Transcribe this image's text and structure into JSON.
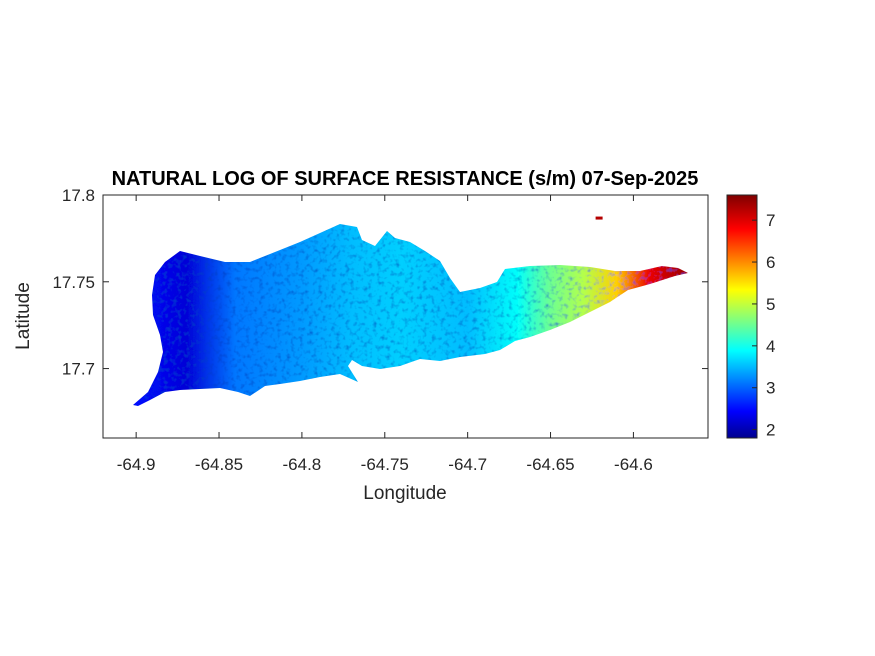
{
  "chart_data": {
    "type": "heatmap",
    "title": "NATURAL LOG OF SURFACE RESISTANCE (s/m) 07-Sep-2025",
    "xlabel": "Longitude",
    "ylabel": "Latitude",
    "xlim": [
      -64.92,
      -64.555
    ],
    "ylim": [
      17.66,
      17.8
    ],
    "xticks": [
      -64.9,
      -64.85,
      -64.8,
      -64.75,
      -64.7,
      -64.65,
      -64.6
    ],
    "xtick_labels": [
      "-64.9",
      "-64.85",
      "-64.8",
      "-64.75",
      "-64.7",
      "-64.65",
      "-64.6"
    ],
    "yticks": [
      17.7,
      17.75,
      17.8
    ],
    "ytick_labels": [
      "17.7",
      "17.75",
      "17.8"
    ],
    "colormap": "jet",
    "clim": [
      1.8,
      7.6
    ],
    "colorbar_ticks": [
      2,
      3,
      4,
      5,
      6,
      7
    ],
    "colorbar_tick_labels": [
      "2",
      "3",
      "4",
      "5",
      "6",
      "7"
    ],
    "colorbar_position": "right",
    "grid": false,
    "region_profile": [
      {
        "lon": -64.9,
        "value": 2.6
      },
      {
        "lon": -64.87,
        "value": 2.3
      },
      {
        "lon": -64.84,
        "value": 3.2
      },
      {
        "lon": -64.8,
        "value": 3.4
      },
      {
        "lon": -64.77,
        "value": 3.6
      },
      {
        "lon": -64.74,
        "value": 3.7
      },
      {
        "lon": -64.7,
        "value": 3.6
      },
      {
        "lon": -64.67,
        "value": 4.0
      },
      {
        "lon": -64.65,
        "value": 4.6
      },
      {
        "lon": -64.63,
        "value": 5.0
      },
      {
        "lon": -64.61,
        "value": 5.7
      },
      {
        "lon": -64.59,
        "value": 7.0
      },
      {
        "lon": -64.57,
        "value": 7.4
      }
    ],
    "islet": {
      "lon": -64.621,
      "lat": 17.787,
      "value": 7.3
    }
  }
}
